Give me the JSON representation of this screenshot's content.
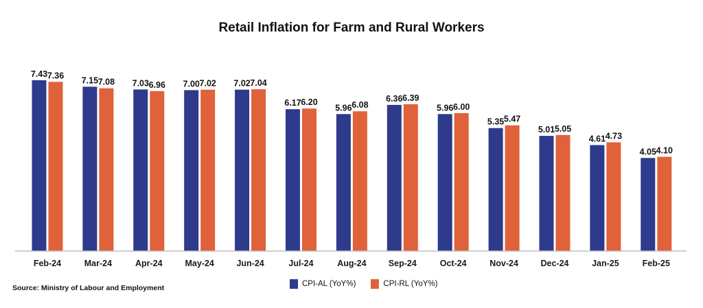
{
  "chart_data": {
    "type": "bar",
    "title": "Retail Inflation for Farm and Rural Workers",
    "categories": [
      "Feb-24",
      "Mar-24",
      "Apr-24",
      "May-24",
      "Jun-24",
      "Jul-24",
      "Aug-24",
      "Sep-24",
      "Oct-24",
      "Nov-24",
      "Dec-24",
      "Jan-25",
      "Feb-25"
    ],
    "series": [
      {
        "name": "CPI-AL (YoY%)",
        "color": "#2e3a8c",
        "values": [
          7.43,
          7.15,
          7.03,
          7.0,
          7.02,
          6.17,
          5.96,
          6.36,
          5.96,
          5.35,
          5.01,
          4.61,
          4.05
        ],
        "labels": [
          "7.43",
          "7.15",
          "7.03",
          "7.00",
          "7.02",
          "6.17",
          "5.96",
          "6.36",
          "5.96",
          "5.35",
          "5.01",
          "4.61",
          "4.05"
        ]
      },
      {
        "name": "CPI-RL (YoY%)",
        "color": "#e0623a",
        "values": [
          7.36,
          7.08,
          6.96,
          7.02,
          7.04,
          6.2,
          6.08,
          6.39,
          6.0,
          5.47,
          5.05,
          4.73,
          4.1
        ],
        "labels": [
          "7.36",
          "7.08",
          "6.96",
          "7.02",
          "7.04",
          "6.20",
          "6.08",
          "6.39",
          "6.00",
          "5.47",
          "5.05",
          "4.73",
          "4.10"
        ]
      }
    ],
    "ylim": [
      0,
      7.43
    ],
    "grid": false,
    "legend_position": "bottom-center"
  },
  "source": {
    "label": "Source:",
    "text": "Ministry of Labour and Employment"
  }
}
